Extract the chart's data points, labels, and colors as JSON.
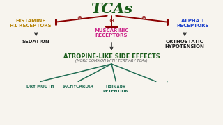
{
  "bg_color": "#f7f4ee",
  "title": "TCAs",
  "title_color": "#1a5c1a",
  "title_fontsize": 15,
  "arrow_color": "#8b0000",
  "left_label": "HISTAMINE\nH1 RECEPTORS",
  "left_label_color": "#b8860b",
  "center_label": "MUSCARINIC\nRECEPTORS",
  "center_label_color": "#cc2288",
  "right_label": "ALPHA 1\nRECEPTORS",
  "right_label_color": "#2244cc",
  "sedation_label": "SEDATION",
  "sedation_color": "#222222",
  "ortho_label": "ORTHOSTATIC\nHYPOTENSION",
  "ortho_color": "#222222",
  "atropine_label": "ATROPINE-LIKE SIDE EFFECTS",
  "atropine_color": "#1a5c1a",
  "subtitle_label": "(MORE COMMON WITH TERTIARY TCAs)",
  "subtitle_color": "#555555",
  "effects": [
    "DRY MOUTH",
    "TACHYCARDIA",
    "URINARY\nRETENTION",
    ""
  ],
  "effects_color": "#1e6b52",
  "black_arrow": "#333333"
}
